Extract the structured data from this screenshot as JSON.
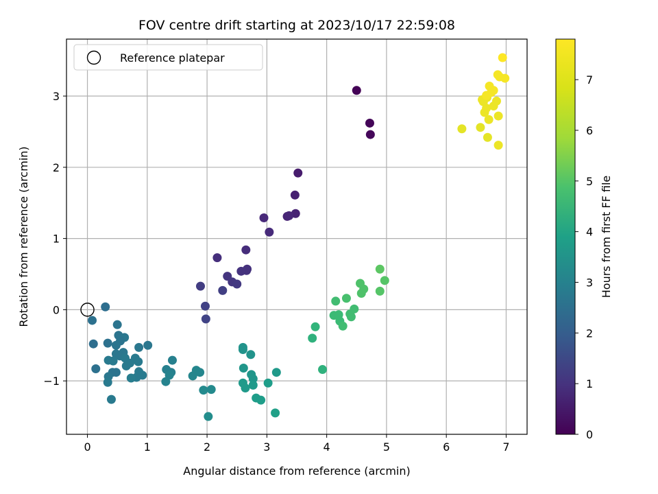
{
  "chart_data": {
    "type": "scatter",
    "title": "FOV centre drift starting at 2023/10/17 22:59:08",
    "xlabel": "Angular distance from reference (arcmin)",
    "ylabel": "Rotation from reference (arcmin)",
    "xlim": [
      -0.35,
      7.35
    ],
    "ylim": [
      -1.75,
      3.8
    ],
    "xticks": [
      "0",
      "1",
      "2",
      "3",
      "4",
      "5",
      "6",
      "7"
    ],
    "yticks": [
      "−1",
      "0",
      "1",
      "2",
      "3"
    ],
    "grid": true,
    "colormap": "viridis",
    "colorbar": {
      "label": "Hours from first FF file",
      "range": [
        0,
        7.8
      ],
      "ticks": [
        "0",
        "1",
        "2",
        "3",
        "4",
        "5",
        "6",
        "7"
      ]
    },
    "legend": {
      "placement": "top-left",
      "entries": [
        {
          "label": "Reference platepar",
          "marker": "open-circle"
        }
      ]
    },
    "reference_point": {
      "x": 0,
      "y": 0
    },
    "points": [
      {
        "x": 4.5,
        "y": 3.08,
        "c": 0.05
      },
      {
        "x": 4.72,
        "y": 2.62,
        "c": 0.1
      },
      {
        "x": 4.73,
        "y": 2.46,
        "c": 0.15
      },
      {
        "x": 3.52,
        "y": 1.92,
        "c": 0.6
      },
      {
        "x": 3.47,
        "y": 1.61,
        "c": 0.7
      },
      {
        "x": 3.48,
        "y": 1.35,
        "c": 0.75
      },
      {
        "x": 3.34,
        "y": 1.31,
        "c": 0.8
      },
      {
        "x": 3.37,
        "y": 1.32,
        "c": 0.85
      },
      {
        "x": 2.95,
        "y": 1.29,
        "c": 0.9
      },
      {
        "x": 3.04,
        "y": 1.09,
        "c": 0.95
      },
      {
        "x": 2.65,
        "y": 0.84,
        "c": 1.0
      },
      {
        "x": 2.17,
        "y": 0.73,
        "c": 1.05
      },
      {
        "x": 2.67,
        "y": 0.57,
        "c": 1.1
      },
      {
        "x": 2.66,
        "y": 0.55,
        "c": 1.12
      },
      {
        "x": 2.57,
        "y": 0.54,
        "c": 1.15
      },
      {
        "x": 2.34,
        "y": 0.47,
        "c": 1.2
      },
      {
        "x": 2.42,
        "y": 0.39,
        "c": 1.25
      },
      {
        "x": 2.5,
        "y": 0.36,
        "c": 1.3
      },
      {
        "x": 1.89,
        "y": 0.33,
        "c": 1.4
      },
      {
        "x": 2.26,
        "y": 0.27,
        "c": 1.45
      },
      {
        "x": 1.97,
        "y": 0.05,
        "c": 1.5
      },
      {
        "x": 1.98,
        "y": -0.13,
        "c": 1.55
      },
      {
        "x": 0.3,
        "y": 0.04,
        "c": 2.8
      },
      {
        "x": 0.08,
        "y": -0.15,
        "c": 2.9
      },
      {
        "x": 0.5,
        "y": -0.21,
        "c": 3.0
      },
      {
        "x": 0.1,
        "y": -0.48,
        "c": 2.8
      },
      {
        "x": 0.34,
        "y": -0.47,
        "c": 2.9
      },
      {
        "x": 0.52,
        "y": -0.36,
        "c": 3.0
      },
      {
        "x": 0.62,
        "y": -0.39,
        "c": 3.1
      },
      {
        "x": 0.55,
        "y": -0.44,
        "c": 3.0
      },
      {
        "x": 0.48,
        "y": -0.5,
        "c": 3.0
      },
      {
        "x": 1.01,
        "y": -0.5,
        "c": 3.1
      },
      {
        "x": 0.86,
        "y": -0.53,
        "c": 3.1
      },
      {
        "x": 0.6,
        "y": -0.6,
        "c": 3.1
      },
      {
        "x": 0.48,
        "y": -0.62,
        "c": 3.1
      },
      {
        "x": 0.54,
        "y": -0.65,
        "c": 3.1
      },
      {
        "x": 0.63,
        "y": -0.68,
        "c": 3.2
      },
      {
        "x": 0.35,
        "y": -0.71,
        "c": 3.2
      },
      {
        "x": 0.43,
        "y": -0.72,
        "c": 3.2
      },
      {
        "x": 0.8,
        "y": -0.68,
        "c": 3.2
      },
      {
        "x": 0.85,
        "y": -0.73,
        "c": 3.2
      },
      {
        "x": 0.71,
        "y": -0.75,
        "c": 3.2
      },
      {
        "x": 0.65,
        "y": -0.79,
        "c": 3.2
      },
      {
        "x": 0.14,
        "y": -0.83,
        "c": 2.9
      },
      {
        "x": 0.42,
        "y": -0.88,
        "c": 3.0
      },
      {
        "x": 0.48,
        "y": -0.88,
        "c": 3.0
      },
      {
        "x": 0.86,
        "y": -0.87,
        "c": 3.2
      },
      {
        "x": 0.92,
        "y": -0.92,
        "c": 3.2
      },
      {
        "x": 0.82,
        "y": -0.95,
        "c": 3.2
      },
      {
        "x": 0.73,
        "y": -0.96,
        "c": 3.3
      },
      {
        "x": 0.35,
        "y": -0.94,
        "c": 3.1
      },
      {
        "x": 0.34,
        "y": -1.02,
        "c": 3.2
      },
      {
        "x": 0.4,
        "y": -1.26,
        "c": 3.2
      },
      {
        "x": 1.42,
        "y": -0.71,
        "c": 3.4
      },
      {
        "x": 1.32,
        "y": -0.84,
        "c": 3.4
      },
      {
        "x": 1.4,
        "y": -0.88,
        "c": 3.4
      },
      {
        "x": 1.37,
        "y": -0.92,
        "c": 3.5
      },
      {
        "x": 1.31,
        "y": -1.01,
        "c": 3.5
      },
      {
        "x": 1.82,
        "y": -0.85,
        "c": 3.6
      },
      {
        "x": 1.88,
        "y": -0.88,
        "c": 3.6
      },
      {
        "x": 1.76,
        "y": -0.93,
        "c": 3.6
      },
      {
        "x": 1.94,
        "y": -1.13,
        "c": 3.7
      },
      {
        "x": 2.07,
        "y": -1.12,
        "c": 3.7
      },
      {
        "x": 2.02,
        "y": -1.5,
        "c": 3.8
      },
      {
        "x": 2.6,
        "y": -0.53,
        "c": 4.0
      },
      {
        "x": 2.6,
        "y": -0.56,
        "c": 4.0
      },
      {
        "x": 2.73,
        "y": -0.63,
        "c": 4.0
      },
      {
        "x": 2.61,
        "y": -0.82,
        "c": 4.1
      },
      {
        "x": 2.74,
        "y": -0.91,
        "c": 4.1
      },
      {
        "x": 2.77,
        "y": -0.97,
        "c": 4.1
      },
      {
        "x": 2.6,
        "y": -1.03,
        "c": 4.2
      },
      {
        "x": 2.77,
        "y": -1.06,
        "c": 4.2
      },
      {
        "x": 2.64,
        "y": -1.1,
        "c": 4.2
      },
      {
        "x": 3.16,
        "y": -0.88,
        "c": 4.2
      },
      {
        "x": 3.02,
        "y": -1.03,
        "c": 4.3
      },
      {
        "x": 2.82,
        "y": -1.24,
        "c": 4.3
      },
      {
        "x": 2.9,
        "y": -1.27,
        "c": 4.3
      },
      {
        "x": 3.14,
        "y": -1.45,
        "c": 4.4
      },
      {
        "x": 3.93,
        "y": -0.84,
        "c": 5.0
      },
      {
        "x": 3.76,
        "y": -0.4,
        "c": 5.0
      },
      {
        "x": 3.81,
        "y": -0.24,
        "c": 5.1
      },
      {
        "x": 4.12,
        "y": -0.08,
        "c": 5.3
      },
      {
        "x": 4.2,
        "y": -0.07,
        "c": 5.3
      },
      {
        "x": 4.22,
        "y": -0.16,
        "c": 5.3
      },
      {
        "x": 4.27,
        "y": -0.23,
        "c": 5.4
      },
      {
        "x": 4.39,
        "y": -0.06,
        "c": 5.4
      },
      {
        "x": 4.41,
        "y": -0.1,
        "c": 5.4
      },
      {
        "x": 4.46,
        "y": 0.01,
        "c": 5.4
      },
      {
        "x": 4.15,
        "y": 0.12,
        "c": 5.4
      },
      {
        "x": 4.33,
        "y": 0.16,
        "c": 5.5
      },
      {
        "x": 4.58,
        "y": 0.23,
        "c": 5.6
      },
      {
        "x": 4.62,
        "y": 0.29,
        "c": 5.6
      },
      {
        "x": 4.56,
        "y": 0.37,
        "c": 5.6
      },
      {
        "x": 4.89,
        "y": 0.26,
        "c": 5.7
      },
      {
        "x": 4.97,
        "y": 0.41,
        "c": 5.7
      },
      {
        "x": 4.89,
        "y": 0.57,
        "c": 5.8
      },
      {
        "x": 6.26,
        "y": 2.54,
        "c": 7.5
      },
      {
        "x": 6.57,
        "y": 2.56,
        "c": 7.5
      },
      {
        "x": 6.69,
        "y": 2.42,
        "c": 7.5
      },
      {
        "x": 6.87,
        "y": 2.31,
        "c": 7.6
      },
      {
        "x": 6.87,
        "y": 2.72,
        "c": 7.6
      },
      {
        "x": 6.71,
        "y": 2.67,
        "c": 7.6
      },
      {
        "x": 6.64,
        "y": 2.77,
        "c": 7.6
      },
      {
        "x": 6.67,
        "y": 2.83,
        "c": 7.6
      },
      {
        "x": 6.79,
        "y": 2.86,
        "c": 7.6
      },
      {
        "x": 6.62,
        "y": 2.92,
        "c": 7.6
      },
      {
        "x": 6.68,
        "y": 2.98,
        "c": 7.6
      },
      {
        "x": 6.6,
        "y": 2.95,
        "c": 7.6
      },
      {
        "x": 6.84,
        "y": 2.93,
        "c": 7.6
      },
      {
        "x": 6.75,
        "y": 3.05,
        "c": 7.7
      },
      {
        "x": 6.79,
        "y": 3.08,
        "c": 7.7
      },
      {
        "x": 6.67,
        "y": 3.01,
        "c": 7.7
      },
      {
        "x": 6.72,
        "y": 3.14,
        "c": 7.7
      },
      {
        "x": 6.86,
        "y": 3.3,
        "c": 7.7
      },
      {
        "x": 6.89,
        "y": 3.27,
        "c": 7.7
      },
      {
        "x": 6.98,
        "y": 3.25,
        "c": 7.7
      },
      {
        "x": 6.94,
        "y": 3.54,
        "c": 7.8
      }
    ]
  }
}
